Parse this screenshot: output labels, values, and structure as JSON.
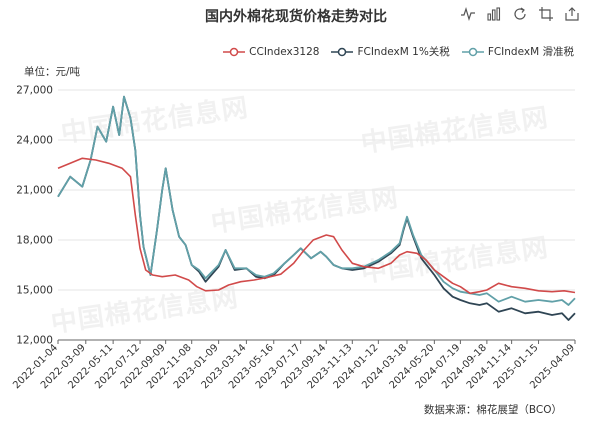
{
  "title": "国内外棉花现货价格走势对比",
  "toolbox": [
    {
      "name": "line-chart-icon"
    },
    {
      "name": "bar-chart-icon"
    },
    {
      "name": "restore-icon"
    },
    {
      "name": "crop-icon"
    },
    {
      "name": "export-icon"
    }
  ],
  "unit_label": "单位：元/吨",
  "source": "数据来源：棉花展望（BCO）",
  "watermark": "中国棉花信息网",
  "colors": {
    "CCIndex3128": "#d14a4a",
    "FCIndexM_1pct": "#2f4554",
    "FCIndexM_sliding": "#61a0a8",
    "grid": "#e6e6e6",
    "axis": "#666666"
  },
  "chart_data": {
    "type": "line",
    "title": "国内外棉花现货价格走势对比",
    "xlabel": "",
    "ylabel": "单位：元/吨",
    "ylim": [
      12000,
      27000
    ],
    "yticks": [
      "12,000",
      "15,000",
      "18,000",
      "21,000",
      "24,000",
      "27,000"
    ],
    "ytick_values": [
      12000,
      15000,
      18000,
      21000,
      24000,
      27000
    ],
    "xrange": [
      "2022-01-04",
      "2025-04-09"
    ],
    "xticks": [
      "2022-01-04",
      "2022-03-09",
      "2022-05-11",
      "2022-07-12",
      "2022-09-09",
      "2022-11-08",
      "2023-01-09",
      "2023-03-14",
      "2023-05-16",
      "2023-07-17",
      "2023-09-14",
      "2023-11-13",
      "2024-01-12",
      "2024-03-18",
      "2024-05-20",
      "2024-07-19",
      "2024-09-18",
      "2024-11-14",
      "2025-01-15",
      "2025-04-09"
    ],
    "grid": "horizontal",
    "legend_position": "top-right",
    "series": [
      {
        "name": "CCIndex3128",
        "x": [
          "2022-01-04",
          "2022-02-01",
          "2022-03-01",
          "2022-04-01",
          "2022-05-01",
          "2022-06-01",
          "2022-06-20",
          "2022-07-01",
          "2022-07-12",
          "2022-07-25",
          "2022-08-10",
          "2022-09-01",
          "2022-10-01",
          "2022-11-01",
          "2022-11-20",
          "2022-12-10",
          "2023-01-09",
          "2023-02-01",
          "2023-03-01",
          "2023-04-01",
          "2023-05-01",
          "2023-06-01",
          "2023-07-01",
          "2023-07-25",
          "2023-08-15",
          "2023-09-14",
          "2023-10-01",
          "2023-10-20",
          "2023-11-13",
          "2023-12-10",
          "2024-01-12",
          "2024-02-10",
          "2024-03-01",
          "2024-03-18",
          "2024-04-10",
          "2024-05-01",
          "2024-05-20",
          "2024-06-10",
          "2024-07-01",
          "2024-07-19",
          "2024-08-10",
          "2024-09-01",
          "2024-09-18",
          "2024-10-15",
          "2024-11-14",
          "2024-12-15",
          "2025-01-15",
          "2025-02-15",
          "2025-03-15",
          "2025-04-09"
        ],
        "values": [
          22300,
          22600,
          22900,
          22800,
          22600,
          22300,
          21800,
          19500,
          17500,
          16200,
          15900,
          15800,
          15900,
          15600,
          15200,
          14950,
          15000,
          15300,
          15500,
          15600,
          15750,
          15950,
          16600,
          17400,
          18000,
          18300,
          18200,
          17400,
          16600,
          16400,
          16300,
          16600,
          17100,
          17300,
          17200,
          16800,
          16200,
          15800,
          15400,
          15200,
          14800,
          14900,
          15000,
          15400,
          15200,
          15100,
          14950,
          14900,
          14950,
          14850
        ]
      },
      {
        "name": "FCIndexM 1%关税",
        "x": [
          "2022-01-04",
          "2022-02-01",
          "2022-03-01",
          "2022-03-20",
          "2022-04-05",
          "2022-04-25",
          "2022-05-11",
          "2022-05-25",
          "2022-06-05",
          "2022-06-20",
          "2022-07-01",
          "2022-07-12",
          "2022-07-20",
          "2022-08-05",
          "2022-08-20",
          "2022-09-01",
          "2022-09-09",
          "2022-09-25",
          "2022-10-10",
          "2022-10-25",
          "2022-11-08",
          "2022-11-25",
          "2022-12-10",
          "2023-01-09",
          "2023-01-25",
          "2023-02-15",
          "2023-03-14",
          "2023-04-05",
          "2023-04-25",
          "2023-05-16",
          "2023-06-10",
          "2023-07-01",
          "2023-07-17",
          "2023-08-10",
          "2023-09-01",
          "2023-09-14",
          "2023-10-01",
          "2023-10-20",
          "2023-11-13",
          "2023-12-10",
          "2024-01-12",
          "2024-02-10",
          "2024-03-01",
          "2024-03-10",
          "2024-03-18",
          "2024-04-01",
          "2024-04-20",
          "2024-05-20",
          "2024-06-10",
          "2024-07-01",
          "2024-07-19",
          "2024-08-10",
          "2024-09-01",
          "2024-09-18",
          "2024-10-15",
          "2024-11-14",
          "2024-12-15",
          "2025-01-15",
          "2025-02-15",
          "2025-03-10",
          "2025-03-25",
          "2025-04-09"
        ],
        "values": [
          20600,
          21800,
          21200,
          22800,
          24800,
          23900,
          26000,
          24300,
          26600,
          25300,
          23400,
          19500,
          17600,
          15900,
          18600,
          21000,
          22300,
          19800,
          18200,
          17700,
          16500,
          16100,
          15500,
          16400,
          17400,
          16200,
          16300,
          15800,
          15700,
          15900,
          16600,
          17100,
          17500,
          16900,
          17300,
          17000,
          16500,
          16300,
          16200,
          16300,
          16700,
          17200,
          17700,
          18600,
          19300,
          18200,
          16900,
          15900,
          15100,
          14600,
          14400,
          14200,
          14100,
          14200,
          13700,
          13900,
          13600,
          13700,
          13500,
          13600,
          13200,
          13600
        ]
      },
      {
        "name": "FCIndexM 滑准税",
        "x": [
          "2022-01-04",
          "2022-02-01",
          "2022-03-01",
          "2022-03-20",
          "2022-04-05",
          "2022-04-25",
          "2022-05-11",
          "2022-05-25",
          "2022-06-05",
          "2022-06-20",
          "2022-07-01",
          "2022-07-12",
          "2022-07-20",
          "2022-08-05",
          "2022-08-20",
          "2022-09-01",
          "2022-09-09",
          "2022-09-25",
          "2022-10-10",
          "2022-10-25",
          "2022-11-08",
          "2022-11-25",
          "2022-12-10",
          "2023-01-09",
          "2023-01-25",
          "2023-02-15",
          "2023-03-14",
          "2023-04-05",
          "2023-04-25",
          "2023-05-16",
          "2023-06-10",
          "2023-07-01",
          "2023-07-17",
          "2023-08-10",
          "2023-09-01",
          "2023-09-14",
          "2023-10-01",
          "2023-10-20",
          "2023-11-13",
          "2023-12-10",
          "2024-01-12",
          "2024-02-10",
          "2024-03-01",
          "2024-03-10",
          "2024-03-18",
          "2024-04-01",
          "2024-04-20",
          "2024-05-20",
          "2024-06-10",
          "2024-07-01",
          "2024-07-19",
          "2024-08-10",
          "2024-09-01",
          "2024-09-18",
          "2024-10-15",
          "2024-11-14",
          "2024-12-15",
          "2025-01-15",
          "2025-02-15",
          "2025-03-10",
          "2025-03-25",
          "2025-04-09"
        ],
        "values": [
          20600,
          21800,
          21200,
          22800,
          24800,
          23900,
          26000,
          24300,
          26600,
          25300,
          23400,
          19500,
          17600,
          15900,
          18600,
          21000,
          22300,
          19800,
          18200,
          17700,
          16500,
          16200,
          15700,
          16500,
          17400,
          16300,
          16300,
          15900,
          15800,
          16000,
          16600,
          17100,
          17500,
          16900,
          17300,
          17000,
          16500,
          16300,
          16300,
          16400,
          16800,
          17300,
          17800,
          18700,
          19400,
          18300,
          17100,
          16200,
          15500,
          15100,
          14900,
          14800,
          14700,
          14800,
          14300,
          14600,
          14300,
          14400,
          14300,
          14400,
          14100,
          14500
        ]
      }
    ]
  }
}
